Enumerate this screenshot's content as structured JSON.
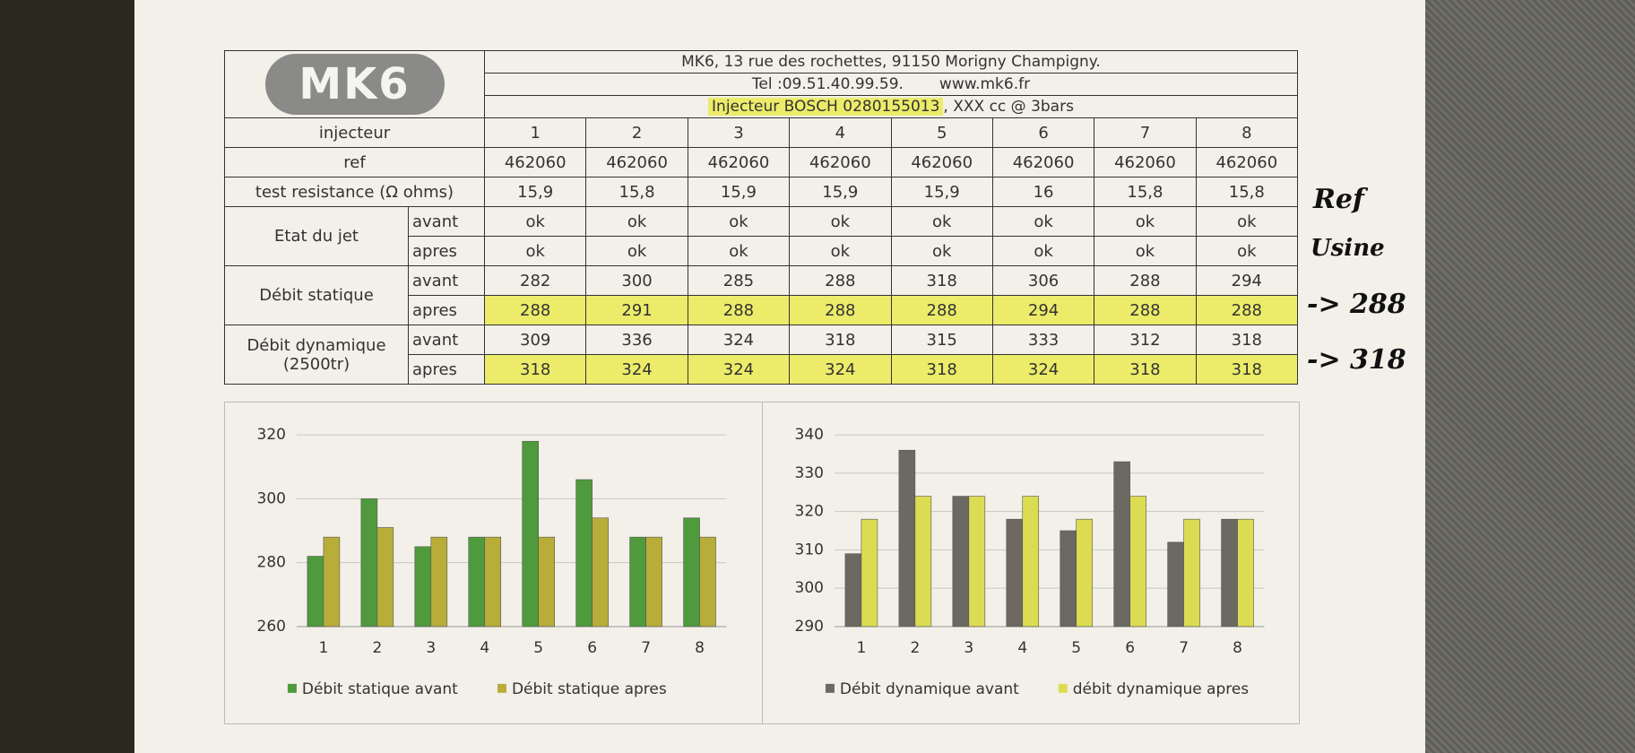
{
  "header": {
    "logo": "MK6",
    "address": "MK6, 13 rue des rochettes, 91150 Morigny Champigny.",
    "tel": "Tel :09.51.40.99.59.",
    "web": "www.mk6.fr",
    "injector": "Injecteur BOSCH 0280155013",
    "injector_note": ", XXX cc @ 3bars"
  },
  "table": {
    "rows": [
      {
        "label": "injecteur",
        "cells": [
          "1",
          "2",
          "3",
          "4",
          "5",
          "6",
          "7",
          "8"
        ]
      },
      {
        "label": "ref",
        "cells": [
          "462060",
          "462060",
          "462060",
          "462060",
          "462060",
          "462060",
          "462060",
          "462060"
        ]
      },
      {
        "label": "test resistance (Ω ohms)",
        "cells": [
          "15,9",
          "15,8",
          "15,9",
          "15,9",
          "15,9",
          "16",
          "15,8",
          "15,8"
        ]
      },
      {
        "label": "Etat du jet",
        "sub": [
          {
            "label": "avant",
            "cells": [
              "ok",
              "ok",
              "ok",
              "ok",
              "ok",
              "ok",
              "ok",
              "ok"
            ]
          },
          {
            "label": "apres",
            "cells": [
              "ok",
              "ok",
              "ok",
              "ok",
              "ok",
              "ok",
              "ok",
              "ok"
            ]
          }
        ]
      },
      {
        "label": "Débit statique",
        "sub": [
          {
            "label": "avant",
            "cells": [
              "282",
              "300",
              "285",
              "288",
              "318",
              "306",
              "288",
              "294"
            ]
          },
          {
            "label": "apres",
            "highlight": true,
            "cells": [
              "288",
              "291",
              "288",
              "288",
              "288",
              "294",
              "288",
              "288"
            ]
          }
        ]
      },
      {
        "label": "Débit dynamique",
        "unit": "(2500tr)",
        "sub": [
          {
            "label": "avant",
            "cells": [
              "309",
              "336",
              "324",
              "318",
              "315",
              "333",
              "312",
              "318"
            ]
          },
          {
            "label": "apres",
            "highlight": true,
            "cells": [
              "318",
              "324",
              "324",
              "324",
              "318",
              "324",
              "318",
              "318"
            ]
          }
        ]
      }
    ]
  },
  "annotations": {
    "ref": "Ref",
    "usine": "Usine",
    "statique": "-> 288",
    "dynamique": "-> 318"
  },
  "chart_data": [
    {
      "type": "bar",
      "categories": [
        "1",
        "2",
        "3",
        "4",
        "5",
        "6",
        "7",
        "8"
      ],
      "series": [
        {
          "name": "Débit statique avant",
          "color": "#4f9a3c",
          "values": [
            282,
            300,
            285,
            288,
            318,
            306,
            288,
            294
          ]
        },
        {
          "name": "Débit statique apres",
          "color": "#b9ad3a",
          "values": [
            288,
            291,
            288,
            288,
            288,
            294,
            288,
            288
          ]
        }
      ],
      "ylim": [
        260,
        320
      ],
      "yticks": [
        260,
        280,
        300,
        320
      ],
      "grid": true,
      "legend": "bottom"
    },
    {
      "type": "bar",
      "categories": [
        "1",
        "2",
        "3",
        "4",
        "5",
        "6",
        "7",
        "8"
      ],
      "series": [
        {
          "name": "Débit dynamique avant",
          "color": "#6c6862",
          "values": [
            309,
            336,
            324,
            318,
            315,
            333,
            312,
            318
          ]
        },
        {
          "name": "débit dynamique apres",
          "color": "#dcdc52",
          "values": [
            318,
            324,
            324,
            324,
            318,
            324,
            318,
            318
          ]
        }
      ],
      "ylim": [
        290,
        340
      ],
      "yticks": [
        290,
        300,
        310,
        320,
        330,
        340
      ],
      "grid": true,
      "legend": "bottom"
    }
  ]
}
